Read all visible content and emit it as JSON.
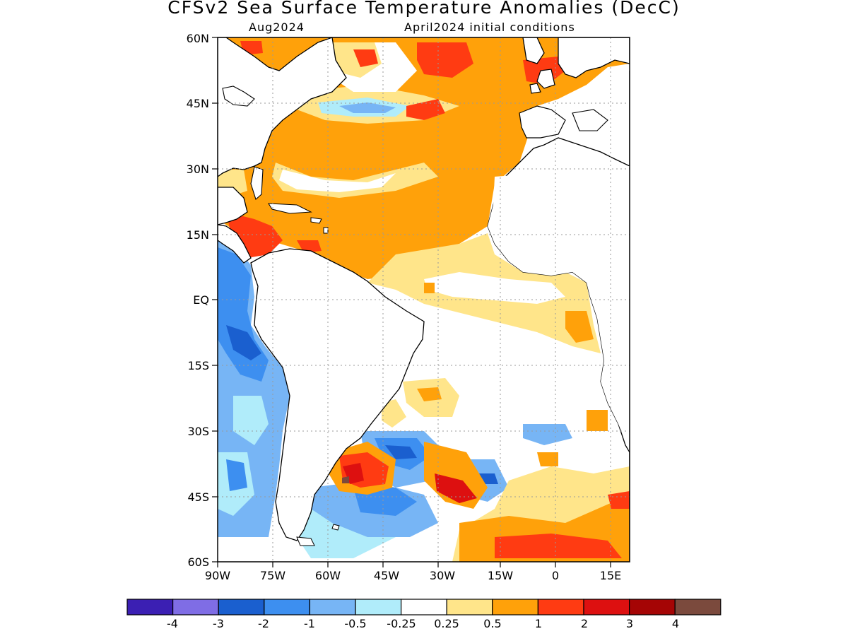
{
  "title": "CFSv2 Sea Surface Temperature Anomalies (DecC)",
  "subtitle_left": "Aug2024",
  "subtitle_right": "April2024 initial conditions",
  "lat_labels": [
    "60N",
    "45N",
    "30N",
    "15N",
    "EQ",
    "15S",
    "30S",
    "45S",
    "60S"
  ],
  "lon_labels": [
    "90W",
    "75W",
    "60W",
    "45W",
    "30W",
    "15W",
    "0",
    "15E"
  ],
  "colorbar": {
    "colors": [
      "#3b1fb3",
      "#7f6de5",
      "#1a5fcf",
      "#3d8ff0",
      "#77b5f5",
      "#b0ecfa",
      "#ffffff",
      "#ffe58a",
      "#ffa10a",
      "#ff3b12",
      "#dd1010",
      "#a50505",
      "#7b4a3d"
    ],
    "tick_labels": [
      "-4",
      "-3",
      "-2",
      "-1",
      "-0.5",
      "-0.25",
      "0.25",
      "0.5",
      "1",
      "2",
      "3",
      "4"
    ]
  },
  "map_colors": {
    "land": "#ffffff",
    "coast": "#000000",
    "grid": "#9a9a9a"
  }
}
